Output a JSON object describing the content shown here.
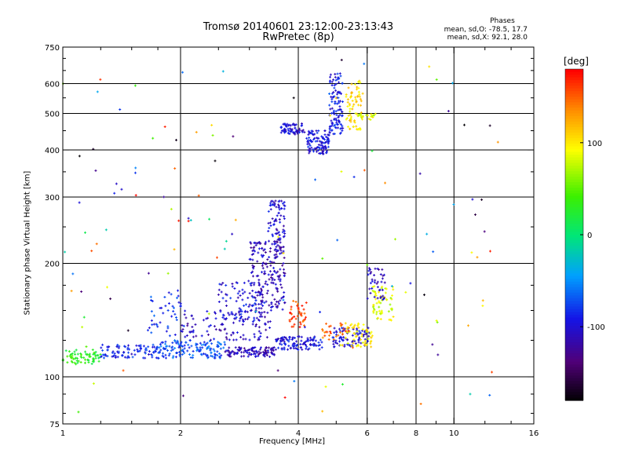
{
  "chart_data": {
    "type": "scatter",
    "title": "Tromsø 20140601 23:12:00-23:13:43",
    "subtitle": "RwPretec (8p)",
    "xlabel": "Frequency [MHz]",
    "ylabel": "Stationary phase Virtual Height [km]",
    "xscale": "log",
    "yscale": "log",
    "xlim": [
      1,
      16
    ],
    "ylim": [
      75,
      750
    ],
    "xticks": [
      1,
      2,
      4,
      6,
      8,
      10,
      16
    ],
    "yticks": [
      75,
      100,
      200,
      300,
      400,
      500,
      600,
      750
    ],
    "xgrid": [
      2,
      4,
      6,
      8,
      10
    ],
    "ygrid": [
      100,
      200,
      300,
      400,
      500,
      600
    ],
    "grid": true,
    "colorbar": {
      "label": "[deg]",
      "range": [
        -180,
        180
      ],
      "ticks": [
        100,
        0,
        -100
      ],
      "colormap": "rainbow"
    },
    "stats": {
      "heading": "Phases",
      "line1": "mean, sd,O: -78.5, 17.7",
      "line2": "mean, sd,X:  92.1, 28.0"
    },
    "traces": [
      {
        "type": "band",
        "x0": 1.0,
        "x1": 1.25,
        "y0": 108,
        "y1": 118,
        "phase": 30,
        "n": 70
      },
      {
        "type": "band",
        "x0": 1.25,
        "x1": 1.75,
        "y0": 112,
        "y1": 122,
        "phase": -85,
        "n": 90
      },
      {
        "type": "band",
        "x0": 1.75,
        "x1": 2.6,
        "y0": 112,
        "y1": 125,
        "phase": -70,
        "n": 140
      },
      {
        "type": "band",
        "x0": 2.6,
        "x1": 3.5,
        "y0": 113,
        "y1": 120,
        "phase": -110,
        "n": 110
      },
      {
        "type": "band",
        "x0": 3.5,
        "x1": 4.6,
        "y0": 118,
        "y1": 128,
        "phase": -95,
        "n": 110
      },
      {
        "type": "band",
        "x0": 2.0,
        "x1": 3.4,
        "y0": 125,
        "y1": 150,
        "phase": -105,
        "n": 110
      },
      {
        "type": "band",
        "x0": 1.65,
        "x1": 2.05,
        "y0": 128,
        "y1": 170,
        "phase": -80,
        "n": 45
      },
      {
        "type": "band",
        "x0": 3.0,
        "x1": 3.7,
        "y0": 150,
        "y1": 230,
        "phase": -110,
        "n": 200
      },
      {
        "type": "band",
        "x0": 3.35,
        "x1": 3.7,
        "y0": 230,
        "y1": 295,
        "phase": -100,
        "n": 70
      },
      {
        "type": "band",
        "x0": 2.5,
        "x1": 3.3,
        "y0": 140,
        "y1": 180,
        "phase": -95,
        "n": 80
      },
      {
        "type": "band",
        "x0": 3.6,
        "x1": 4.15,
        "y0": 440,
        "y1": 470,
        "phase": -100,
        "n": 70
      },
      {
        "type": "band",
        "x0": 4.2,
        "x1": 4.8,
        "y0": 390,
        "y1": 450,
        "phase": -95,
        "n": 110
      },
      {
        "type": "band",
        "x0": 4.8,
        "x1": 5.2,
        "y0": 440,
        "y1": 640,
        "phase": -90,
        "n": 110
      },
      {
        "type": "band",
        "x0": 5.3,
        "x1": 5.8,
        "y0": 450,
        "y1": 620,
        "phase": 105,
        "n": 70
      },
      {
        "type": "band",
        "x0": 5.7,
        "x1": 6.3,
        "y0": 480,
        "y1": 500,
        "phase": 85,
        "n": 20
      },
      {
        "type": "band",
        "x0": 4.9,
        "x1": 6.1,
        "y0": 120,
        "y1": 135,
        "phase": -95,
        "n": 80
      },
      {
        "type": "band",
        "x0": 5.1,
        "x1": 6.2,
        "y0": 120,
        "y1": 140,
        "phase": 100,
        "n": 60
      },
      {
        "type": "band",
        "x0": 6.2,
        "x1": 7.0,
        "y0": 140,
        "y1": 175,
        "phase": 85,
        "n": 60
      },
      {
        "type": "band",
        "x0": 6.0,
        "x1": 6.7,
        "y0": 160,
        "y1": 195,
        "phase": -110,
        "n": 40
      },
      {
        "type": "band",
        "x0": 3.8,
        "x1": 4.2,
        "y0": 135,
        "y1": 160,
        "phase": 160,
        "n": 40
      },
      {
        "type": "band",
        "x0": 4.6,
        "x1": 5.4,
        "y0": 125,
        "y1": 140,
        "phase": 150,
        "n": 25
      },
      {
        "type": "band",
        "x0": 1.0,
        "x1": 13.0,
        "y0": 80,
        "y1": 700,
        "phase": 0,
        "n": 130,
        "random_phase": true
      }
    ]
  }
}
